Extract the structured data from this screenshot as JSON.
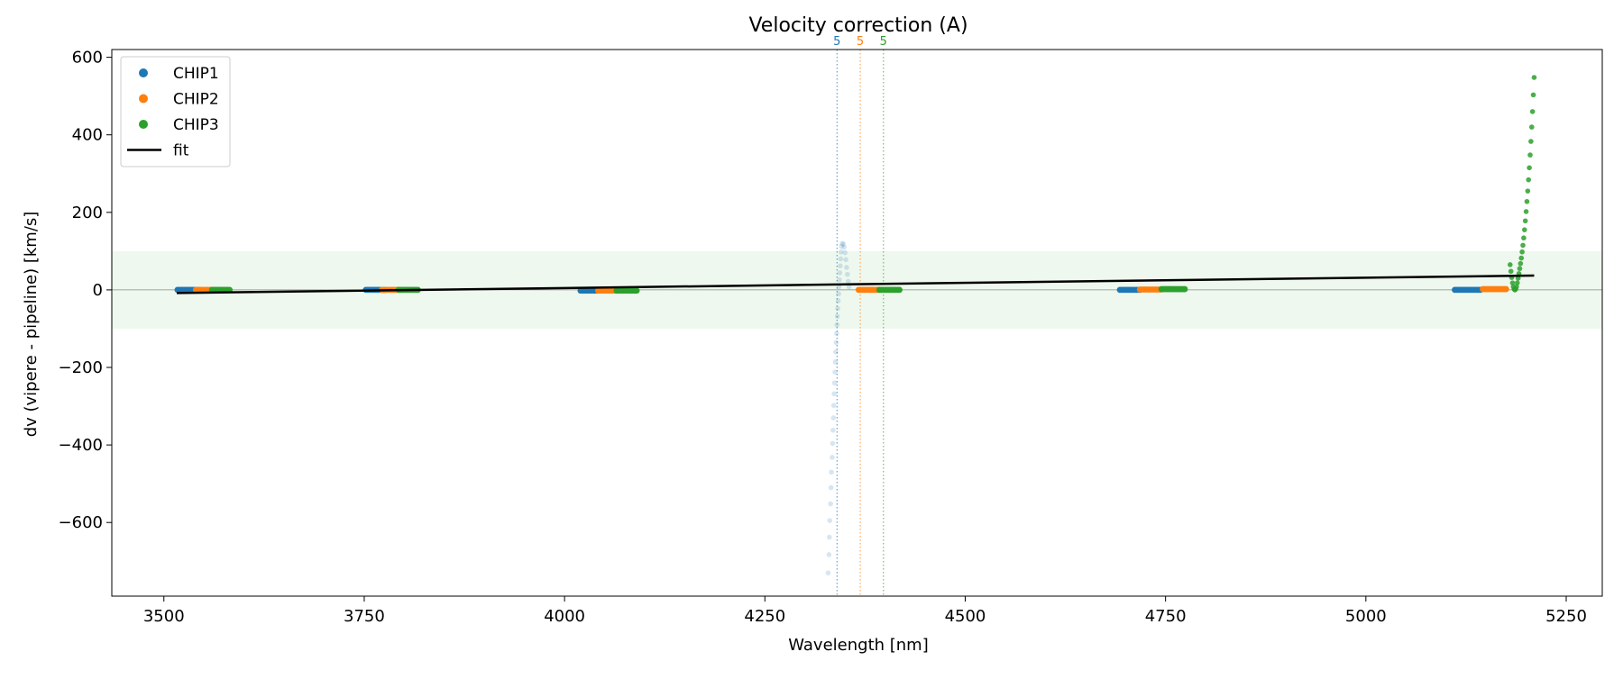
{
  "chart_data": {
    "type": "scatter",
    "title": "Velocity correction (A)",
    "xlabel": "Wavelength [nm]",
    "ylabel": "dv (vipere - pipeline) [km/s]",
    "xlim": [
      3435,
      5295
    ],
    "ylim": [
      -790,
      620
    ],
    "xticks": [
      3500,
      3750,
      4000,
      4250,
      4500,
      4750,
      5000,
      5250
    ],
    "yticks": [
      -600,
      -400,
      -200,
      0,
      200,
      400,
      600
    ],
    "tick_labels_x": [
      "3500",
      "3750",
      "4000",
      "4250",
      "4500",
      "4750",
      "5000",
      "5250"
    ],
    "tick_labels_y": [
      "−600",
      "−400",
      "−200",
      "0",
      "200",
      "400",
      "600"
    ],
    "grid": false,
    "legend_position": "upper-left",
    "band": {
      "y_low": -100,
      "y_high": 100,
      "color": "#2ca02c"
    },
    "zero_line": 0,
    "colors": {
      "CHIP1": "#1f77b4",
      "CHIP2": "#ff7f0e",
      "CHIP3": "#2ca02c",
      "fit": "#000000"
    },
    "legend": [
      {
        "label": "CHIP1",
        "kind": "marker",
        "color": "#1f77b4"
      },
      {
        "label": "CHIP2",
        "kind": "marker",
        "color": "#ff7f0e"
      },
      {
        "label": "CHIP3",
        "kind": "marker",
        "color": "#2ca02c"
      },
      {
        "label": "fit",
        "kind": "line",
        "color": "#000000"
      }
    ],
    "segments": [
      {
        "series": "CHIP1",
        "x_start": 3517,
        "x_end": 3545,
        "y": 0
      },
      {
        "series": "CHIP2",
        "x_start": 3540,
        "x_end": 3562,
        "y": 0
      },
      {
        "series": "CHIP3",
        "x_start": 3560,
        "x_end": 3582,
        "y": 0
      },
      {
        "series": "CHIP1",
        "x_start": 3752,
        "x_end": 3775,
        "y": 0
      },
      {
        "series": "CHIP2",
        "x_start": 3772,
        "x_end": 3795,
        "y": 0
      },
      {
        "series": "CHIP3",
        "x_start": 3793,
        "x_end": 3817,
        "y": 0
      },
      {
        "series": "CHIP1",
        "x_start": 4020,
        "x_end": 4040,
        "y": -2
      },
      {
        "series": "CHIP2",
        "x_start": 4042,
        "x_end": 4065,
        "y": -2
      },
      {
        "series": "CHIP3",
        "x_start": 4065,
        "x_end": 4090,
        "y": -2
      },
      {
        "series": "CHIP2",
        "x_start": 4367,
        "x_end": 4393,
        "y": 0
      },
      {
        "series": "CHIP3",
        "x_start": 4393,
        "x_end": 4418,
        "y": 0
      },
      {
        "series": "CHIP1",
        "x_start": 4693,
        "x_end": 4718,
        "y": 0
      },
      {
        "series": "CHIP2",
        "x_start": 4718,
        "x_end": 4745,
        "y": 1
      },
      {
        "series": "CHIP3",
        "x_start": 4745,
        "x_end": 4774,
        "y": 2
      },
      {
        "series": "CHIP1",
        "x_start": 5111,
        "x_end": 5143,
        "y": 0
      },
      {
        "series": "CHIP2",
        "x_start": 5146,
        "x_end": 5175,
        "y": 2
      }
    ],
    "chip1_feature": {
      "series": "CHIP1",
      "alpha": 0.18,
      "points": [
        {
          "x": 4329,
          "y": -730
        },
        {
          "x": 4330,
          "y": -683
        },
        {
          "x": 4330.5,
          "y": -638
        },
        {
          "x": 4331,
          "y": -595
        },
        {
          "x": 4332,
          "y": -552
        },
        {
          "x": 4332.5,
          "y": -510
        },
        {
          "x": 4333,
          "y": -470
        },
        {
          "x": 4334,
          "y": -432
        },
        {
          "x": 4334.5,
          "y": -396
        },
        {
          "x": 4335,
          "y": -362
        },
        {
          "x": 4335.5,
          "y": -330
        },
        {
          "x": 4336,
          "y": -298
        },
        {
          "x": 4336.5,
          "y": -268
        },
        {
          "x": 4337,
          "y": -240
        },
        {
          "x": 4337.5,
          "y": -212
        },
        {
          "x": 4338,
          "y": -186
        },
        {
          "x": 4338.5,
          "y": -160
        },
        {
          "x": 4339,
          "y": -136
        },
        {
          "x": 4339.5,
          "y": -112
        },
        {
          "x": 4340,
          "y": -90
        },
        {
          "x": 4340.5,
          "y": -68
        },
        {
          "x": 4341,
          "y": -48
        },
        {
          "x": 4341.5,
          "y": -28
        },
        {
          "x": 4342,
          "y": -10
        },
        {
          "x": 4342.5,
          "y": 8
        },
        {
          "x": 4343,
          "y": 26
        },
        {
          "x": 4343.5,
          "y": 44
        },
        {
          "x": 4344,
          "y": 62
        },
        {
          "x": 4344.5,
          "y": 80
        },
        {
          "x": 4345,
          "y": 98
        },
        {
          "x": 4345.5,
          "y": 112
        },
        {
          "x": 4346.5,
          "y": 120
        },
        {
          "x": 4348,
          "y": 118
        },
        {
          "x": 4349,
          "y": 110
        },
        {
          "x": 4350,
          "y": 96
        },
        {
          "x": 4351,
          "y": 78
        },
        {
          "x": 4352,
          "y": 58
        },
        {
          "x": 4353,
          "y": 40
        },
        {
          "x": 4354,
          "y": 22
        },
        {
          "x": 4355,
          "y": 8
        }
      ]
    },
    "chip3_feature": {
      "series": "CHIP3",
      "alpha": 0.85,
      "points": [
        {
          "x": 5180,
          "y": 65
        },
        {
          "x": 5181,
          "y": 48
        },
        {
          "x": 5182,
          "y": 32
        },
        {
          "x": 5183,
          "y": 18
        },
        {
          "x": 5184,
          "y": 8
        },
        {
          "x": 5185,
          "y": 2
        },
        {
          "x": 5186,
          "y": 0
        },
        {
          "x": 5187,
          "y": 2
        },
        {
          "x": 5188,
          "y": 8
        },
        {
          "x": 5189,
          "y": 18
        },
        {
          "x": 5190,
          "y": 30
        },
        {
          "x": 5191,
          "y": 42
        },
        {
          "x": 5192,
          "y": 55
        },
        {
          "x": 5193,
          "y": 68
        },
        {
          "x": 5194,
          "y": 82
        },
        {
          "x": 5195,
          "y": 98
        },
        {
          "x": 5196,
          "y": 115
        },
        {
          "x": 5197,
          "y": 134
        },
        {
          "x": 5198,
          "y": 155
        },
        {
          "x": 5199,
          "y": 178
        },
        {
          "x": 5200,
          "y": 202
        },
        {
          "x": 5201,
          "y": 228
        },
        {
          "x": 5202,
          "y": 255
        },
        {
          "x": 5203,
          "y": 284
        },
        {
          "x": 5204,
          "y": 315
        },
        {
          "x": 5205,
          "y": 348
        },
        {
          "x": 5206,
          "y": 383
        },
        {
          "x": 5207,
          "y": 420
        },
        {
          "x": 5208,
          "y": 460
        },
        {
          "x": 5209,
          "y": 503
        },
        {
          "x": 5210,
          "y": 548
        }
      ]
    },
    "fit": {
      "series": "fit",
      "x": [
        3516,
        5210
      ],
      "y": [
        -8,
        37
      ]
    },
    "vlines": [
      {
        "x": 4340,
        "label": "5",
        "color": "#1f77b4"
      },
      {
        "x": 4369,
        "label": "5",
        "color": "#ff7f0e"
      },
      {
        "x": 4398,
        "label": "5",
        "color": "#2ca02c"
      }
    ]
  }
}
